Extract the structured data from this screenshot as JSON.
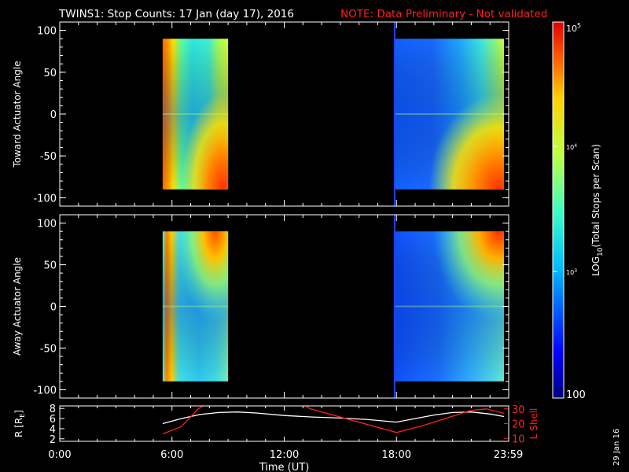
{
  "title": {
    "main": "TWINS1: Stop Counts: 17 Jan (day  17), 2016",
    "note": "NOTE: Data Preliminary - Not validated"
  },
  "colors": {
    "note": "#ff2020",
    "lshell": "#ff2020",
    "radius": "#ffffff",
    "background": "#000000",
    "axes": "#ffffff"
  },
  "date_stamp": "29 Jan 16",
  "chart_data": [
    {
      "type": "heatmap",
      "ylabel": "Toward Actuator Angle",
      "ylim": [
        -110,
        110
      ],
      "yticks": [
        100,
        50,
        0,
        -50,
        -100
      ],
      "xlim": [
        0,
        24
      ],
      "segments": [
        {
          "t_start": 5.5,
          "t_end": 9.0,
          "angle_min": -90,
          "angle_max": 90
        },
        {
          "t_start": 17.9,
          "t_end": 23.75,
          "angle_min": -90,
          "angle_max": 90
        }
      ]
    },
    {
      "type": "heatmap",
      "ylabel": "Away Actuator Angle",
      "ylim": [
        -110,
        110
      ],
      "yticks": [
        100,
        50,
        0,
        -50,
        -100
      ],
      "xlim": [
        0,
        24
      ],
      "segments": [
        {
          "t_start": 5.5,
          "t_end": 9.0,
          "angle_min": -90,
          "angle_max": 90
        },
        {
          "t_start": 17.9,
          "t_end": 23.75,
          "angle_min": -90,
          "angle_max": 90
        }
      ]
    },
    {
      "type": "line",
      "xlabel": "Time (UT)",
      "xticks": [
        "0:00",
        "6:00",
        "12:00",
        "18:00",
        "23:59"
      ],
      "xtick_values": [
        0,
        6,
        12,
        18,
        23.98
      ],
      "xlim": [
        0,
        24
      ],
      "ylabel_left": "R [Rₑ]",
      "ylabel_left_main": "R [R",
      "ylabel_left_sub": "E",
      "ylabel_left_end": "]",
      "ylim_left": [
        1.5,
        8.5
      ],
      "yticks_left": [
        8,
        6,
        4,
        2
      ],
      "ylabel_right": "L Shell",
      "ylim_right": [
        8,
        32
      ],
      "yticks_right": [
        30,
        20,
        10
      ],
      "series": [
        {
          "axis": "left",
          "x": [
            5.5,
            6.5,
            7.5,
            8.5,
            9.5,
            10.5,
            12.0,
            13.5,
            15.0,
            16.5,
            18.0,
            19.0,
            20.0,
            21.0,
            22.0,
            23.0,
            23.75
          ],
          "y": [
            5.0,
            6.0,
            6.8,
            7.2,
            7.3,
            7.1,
            6.6,
            6.3,
            6.1,
            5.8,
            5.3,
            6.0,
            6.7,
            7.2,
            7.3,
            6.9,
            6.4
          ]
        },
        {
          "axis": "right",
          "x": [
            5.5,
            6.5,
            7.4,
            7.9,
            12.9,
            13.4,
            18.0,
            19.5,
            21.0,
            22.0,
            22.8,
            23.75
          ],
          "y": [
            13,
            18,
            30,
            34,
            34,
            30,
            14,
            19,
            25,
            29,
            30,
            27
          ]
        }
      ]
    }
  ],
  "colorbar": {
    "label": "LOG₁₀(Total Stops per Scan)",
    "label_main": "LOG",
    "label_sub": "10",
    "label_end": "(Total Stops per Scan)",
    "scale": "log",
    "range": [
      100,
      100000
    ],
    "top_base": "10",
    "top_exp": "5",
    "mid_base": "10",
    "mid_exp_4": "4",
    "mid_exp_3": "3",
    "bottom_label": "100"
  }
}
